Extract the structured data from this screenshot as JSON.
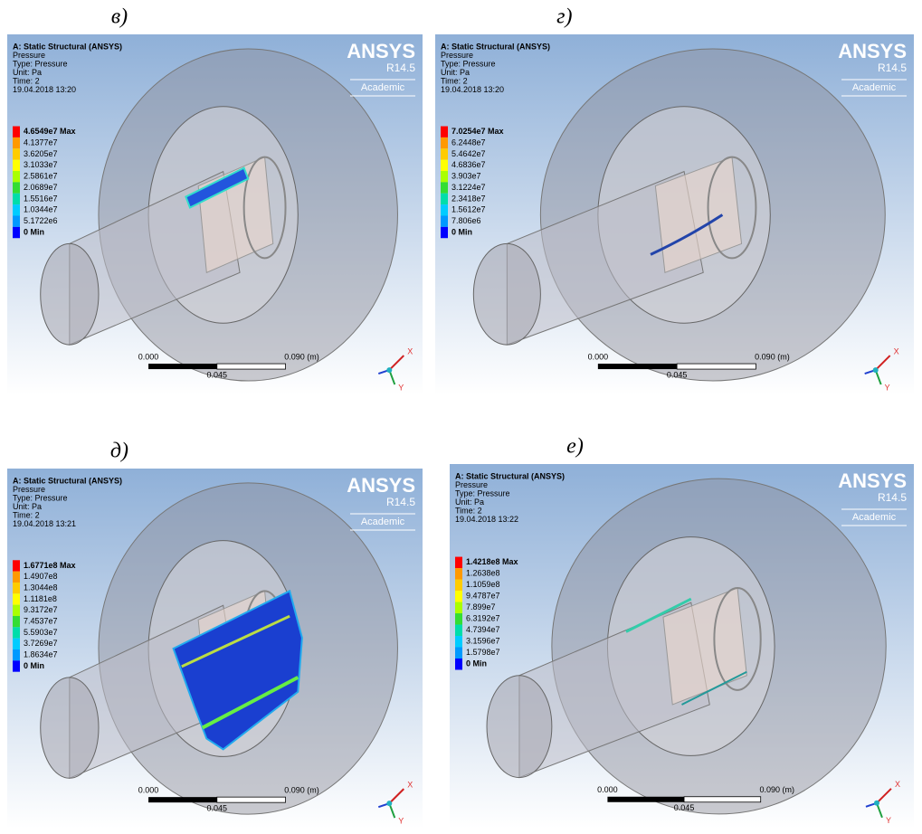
{
  "panels": [
    {
      "label": "в)",
      "header": [
        "A: Static Structural (ANSYS)",
        "Pressure",
        "Type: Pressure",
        "Unit: Pa",
        "Time: 2",
        "19.04.2018 13:20"
      ],
      "legend": [
        "4.6549e7 Max",
        "4.1377e7",
        "3.6205e7",
        "3.1033e7",
        "2.5861e7",
        "2.0689e7",
        "1.5516e7",
        "1.0344e7",
        "5.1722e6",
        "0 Min"
      ],
      "logo": {
        "name": "ANSYS",
        "version": "R14.5",
        "edition": "Academic"
      },
      "scale": {
        "start": "0.000",
        "end": "0.090 (m)",
        "mid": "0.045"
      },
      "triad": [
        "X",
        "Y"
      ]
    },
    {
      "label": "г)",
      "header": [
        "A: Static Structural (ANSYS)",
        "Pressure",
        "Type: Pressure",
        "Unit: Pa",
        "Time: 2",
        "19.04.2018 13:20"
      ],
      "legend": [
        "7.0254e7 Max",
        "6.2448e7",
        "5.4642e7",
        "4.6836e7",
        "3.903e7",
        "3.1224e7",
        "2.3418e7",
        "1.5612e7",
        "7.806e6",
        "0 Min"
      ],
      "logo": {
        "name": "ANSYS",
        "version": "R14.5",
        "edition": "Academic"
      },
      "scale": {
        "start": "0.000",
        "end": "0.090 (m)",
        "mid": "0.045"
      },
      "triad": [
        "X",
        "Y"
      ]
    },
    {
      "label": "д)",
      "header": [
        "A: Static Structural (ANSYS)",
        "Pressure",
        "Type: Pressure",
        "Unit: Pa",
        "Time: 2",
        "19.04.2018 13:21"
      ],
      "legend": [
        "1.6771e8 Max",
        "1.4907e8",
        "1.3044e8",
        "1.1181e8",
        "9.3172e7",
        "7.4537e7",
        "5.5903e7",
        "3.7269e7",
        "1.8634e7",
        "0 Min"
      ],
      "logo": {
        "name": "ANSYS",
        "version": "R14.5",
        "edition": "Academic"
      },
      "scale": {
        "start": "0.000",
        "end": "0.090 (m)",
        "mid": "0.045"
      },
      "triad": [
        "X",
        "Y"
      ]
    },
    {
      "label": "е)",
      "header": [
        "A: Static Structural (ANSYS)",
        "Pressure",
        "Type: Pressure",
        "Unit: Pa",
        "Time: 2",
        "19.04.2018 13:22"
      ],
      "legend": [
        "1.4218e8 Max",
        "1.2638e8",
        "1.1059e8",
        "9.4787e7",
        "7.899e7",
        "6.3192e7",
        "4.7394e7",
        "3.1596e7",
        "1.5798e7",
        "0 Min"
      ],
      "logo": {
        "name": "ANSYS",
        "version": "R14.5",
        "edition": "Academic"
      },
      "scale": {
        "start": "0.000",
        "end": "0.090 (m)",
        "mid": "0.045"
      },
      "triad": [
        "X",
        "Y"
      ]
    }
  ]
}
